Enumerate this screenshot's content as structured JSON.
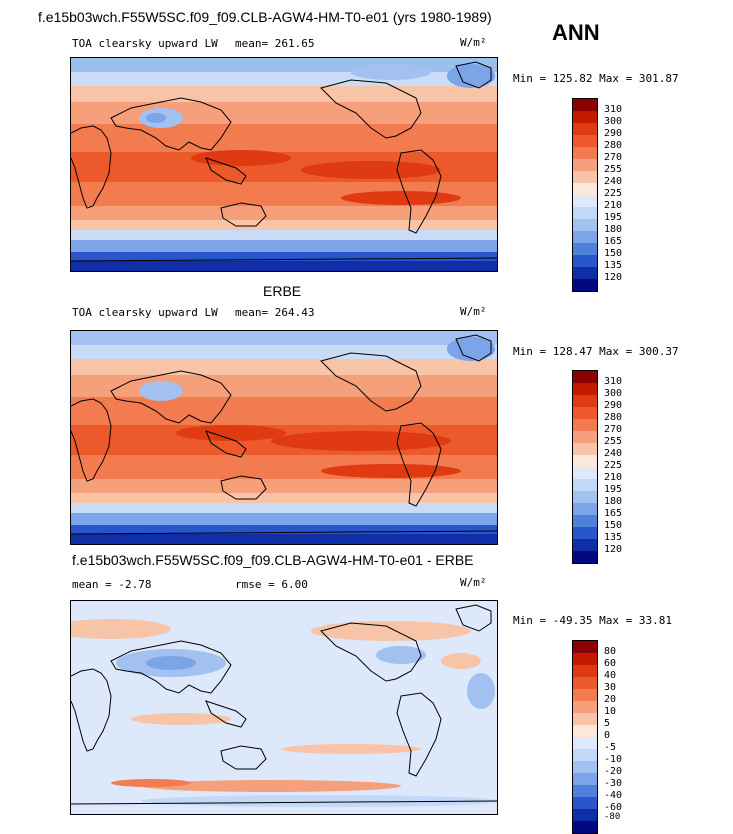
{
  "header": {
    "case_title": "f.e15b03wch.F55W5SC.f09_f09.CLB-AGW4-HM-T0-e01 (yrs 1980-1989)",
    "season": "ANN"
  },
  "panels": [
    {
      "id": "model",
      "heading": "",
      "field_label": "TOA clearsky upward LW",
      "mean_text": "mean= 261.65",
      "units": "W/m²",
      "minmax_text": "Min = 125.82 Max = 301.87",
      "colorbar": {
        "levels": [
          "310",
          "300",
          "290",
          "280",
          "270",
          "255",
          "240",
          "225",
          "210",
          "195",
          "180",
          "165",
          "150",
          "135",
          "120"
        ],
        "colors": [
          "#8b0000",
          "#c41a00",
          "#df3a12",
          "#ec5a2c",
          "#f27c50",
          "#f59f7b",
          "#f8c4a7",
          "#fbe7dc",
          "#dde9fb",
          "#c3d7f6",
          "#a2c0f0",
          "#7ca4e8",
          "#4f80dc",
          "#2a56cb",
          "#0f2ea8",
          "#000a80"
        ]
      }
    },
    {
      "id": "obs",
      "heading": "ERBE",
      "field_label": "TOA clearsky upward LW",
      "mean_text": "mean= 264.43",
      "units": "W/m²",
      "minmax_text": "Min = 128.47 Max = 300.37",
      "colorbar": {
        "levels": [
          "310",
          "300",
          "290",
          "280",
          "270",
          "255",
          "240",
          "225",
          "210",
          "195",
          "180",
          "165",
          "150",
          "135",
          "120"
        ],
        "colors": [
          "#8b0000",
          "#c41a00",
          "#df3a12",
          "#ec5a2c",
          "#f27c50",
          "#f59f7b",
          "#f8c4a7",
          "#fbe7dc",
          "#dde9fb",
          "#c3d7f6",
          "#a2c0f0",
          "#7ca4e8",
          "#4f80dc",
          "#2a56cb",
          "#0f2ea8",
          "#000a80"
        ]
      }
    },
    {
      "id": "diff",
      "heading": "f.e15b03wch.F55W5SC.f09_f09.CLB-AGW4-HM-T0-e01 - ERBE",
      "mean_text": "mean =   -2.78",
      "rmse_text": "rmse =    6.00",
      "units": "W/m²",
      "minmax_text": "Min = -49.35 Max =  33.81",
      "colorbar": {
        "levels": [
          "80",
          "60",
          "40",
          "30",
          "20",
          "10",
          "5",
          "0",
          "-5",
          "-10",
          "-20",
          "-30",
          "-40",
          "-60",
          "-80"
        ],
        "colors": [
          "#8b0000",
          "#c41a00",
          "#df3a12",
          "#ec5a2c",
          "#f27c50",
          "#f59f7b",
          "#f8c4a7",
          "#fbe7dc",
          "#dde9fb",
          "#c3d7f6",
          "#a2c0f0",
          "#7ca4e8",
          "#4f80dc",
          "#2a56cb",
          "#0f2ea8",
          "#000a80"
        ]
      }
    }
  ]
}
